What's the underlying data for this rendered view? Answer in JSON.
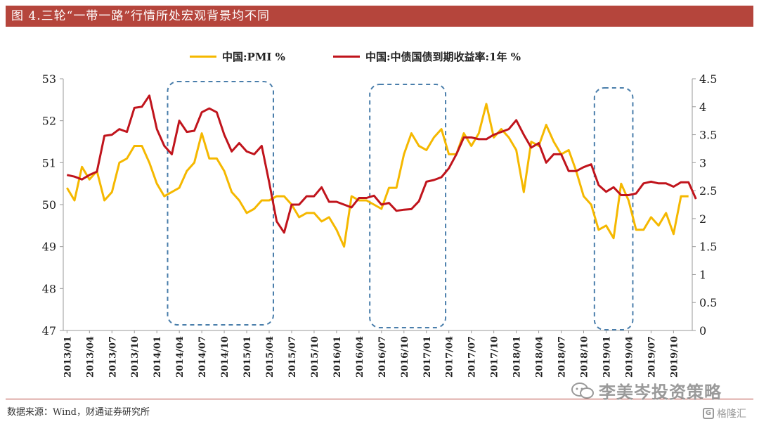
{
  "header": {
    "title": "图 4.三轮“一带一路”行情所处宏观背景均不同"
  },
  "footer": {
    "source": "数据来源：Wind，财通证券研究所"
  },
  "watermarks": {
    "main": "李美岑投资策略",
    "corner": "格隆汇",
    "corner_icon_letter": "G"
  },
  "colors": {
    "pmi": "#f5b800",
    "yield": "#c0141c",
    "box": "#4a7eab",
    "title_bg": "#b5453c"
  },
  "chart_data": {
    "type": "line",
    "x_tick_labels": [
      "2013/01",
      "2013/04",
      "2013/07",
      "2013/10",
      "2014/01",
      "2014/04",
      "2014/07",
      "2014/10",
      "2015/01",
      "2015/04",
      "2015/07",
      "2015/10",
      "2016/01",
      "2016/04",
      "2016/07",
      "2016/10",
      "2017/01",
      "2017/04",
      "2017/07",
      "2017/10",
      "2018/01",
      "2018/04",
      "2018/07",
      "2018/10",
      "2019/01",
      "2019/04",
      "2019/07",
      "2019/10"
    ],
    "x_start": "2013/01",
    "left_axis": {
      "min": 47,
      "max": 53,
      "ticks": [
        47,
        48,
        49,
        50,
        51,
        52,
        53
      ]
    },
    "right_axis": {
      "min": 0,
      "max": 4.5,
      "ticks": [
        "0",
        "0.5",
        "1",
        "1.5",
        "2",
        "2.5",
        "3",
        "3.5",
        "4",
        "4.5"
      ]
    },
    "series": [
      {
        "name": "中国:PMI %",
        "axis": "left",
        "values": [
          50.4,
          50.1,
          50.9,
          50.6,
          50.8,
          50.1,
          50.3,
          51.0,
          51.1,
          51.4,
          51.4,
          51.0,
          50.5,
          50.2,
          50.3,
          50.4,
          50.8,
          51.0,
          51.7,
          51.1,
          51.1,
          50.8,
          50.3,
          50.1,
          49.8,
          49.9,
          50.1,
          50.1,
          50.2,
          50.2,
          50.0,
          49.7,
          49.8,
          49.8,
          49.6,
          49.7,
          49.4,
          49.0,
          50.2,
          50.1,
          50.1,
          50.0,
          49.9,
          50.4,
          50.4,
          51.2,
          51.7,
          51.4,
          51.3,
          51.6,
          51.8,
          51.2,
          51.2,
          51.7,
          51.4,
          51.7,
          52.4,
          51.6,
          51.8,
          51.6,
          51.3,
          50.3,
          51.5,
          51.4,
          51.9,
          51.5,
          51.2,
          51.3,
          50.8,
          50.2,
          50.0,
          49.4,
          49.5,
          49.2,
          50.5,
          50.1,
          49.4,
          49.4,
          49.7,
          49.5,
          49.8,
          49.3,
          50.2,
          50.2
        ],
        "color": "#f5b800"
      },
      {
        "name": "中国:中债国债到期收益率:1年 %",
        "axis": "right",
        "values": [
          2.78,
          2.75,
          2.7,
          2.78,
          2.84,
          3.48,
          3.5,
          3.6,
          3.55,
          3.98,
          4.0,
          4.2,
          3.6,
          3.3,
          3.15,
          3.75,
          3.55,
          3.57,
          3.9,
          3.97,
          3.9,
          3.5,
          3.2,
          3.35,
          3.2,
          3.15,
          3.3,
          2.65,
          1.95,
          1.75,
          2.25,
          2.25,
          2.4,
          2.4,
          2.56,
          2.3,
          2.3,
          2.25,
          2.2,
          2.37,
          2.37,
          2.41,
          2.25,
          2.28,
          2.14,
          2.16,
          2.17,
          2.31,
          2.66,
          2.69,
          2.74,
          2.9,
          3.15,
          3.45,
          3.45,
          3.42,
          3.42,
          3.5,
          3.55,
          3.6,
          3.76,
          3.5,
          3.27,
          3.35,
          3.0,
          3.15,
          3.15,
          2.85,
          2.85,
          2.92,
          2.97,
          2.6,
          2.48,
          2.56,
          2.42,
          2.42,
          2.45,
          2.63,
          2.66,
          2.63,
          2.63,
          2.57,
          2.65,
          2.65,
          2.35
        ]
      }
    ],
    "highlight_boxes": [
      {
        "from": "2014/03",
        "to": "2015/04",
        "label": ""
      },
      {
        "from": "2016/06",
        "to": "2017/03",
        "label": ""
      },
      {
        "from": "2018/12",
        "to": "2019/04",
        "label": ""
      }
    ],
    "legend": "top-center",
    "grid": false
  }
}
